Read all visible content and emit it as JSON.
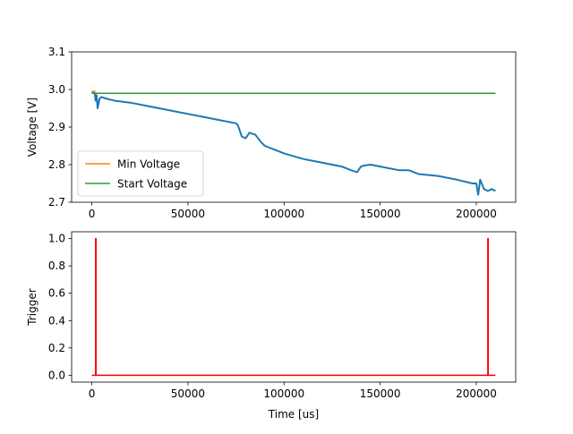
{
  "chart_data": [
    {
      "type": "line",
      "title": "",
      "xlabel": "",
      "ylabel": "Voltage [V]",
      "xlim": [
        -10500,
        220500
      ],
      "ylim": [
        2.7,
        3.1
      ],
      "xticks": [
        0,
        50000,
        100000,
        150000,
        200000
      ],
      "yticks": [
        2.7,
        2.8,
        2.9,
        3.0,
        3.1
      ],
      "xtick_labels": [
        "0",
        "50000",
        "100000",
        "150000",
        "200000"
      ],
      "ytick_labels": [
        "2.7",
        "2.8",
        "2.9",
        "3.0",
        "3.1"
      ],
      "legend": {
        "placement": "lower-left",
        "entries": [
          "Min Voltage",
          "Start Voltage"
        ]
      },
      "series": [
        {
          "name": "",
          "color": "#1f77b4",
          "x": [
            0,
            1500,
            2000,
            2500,
            3000,
            4000,
            5000,
            8000,
            12000,
            20000,
            30000,
            40000,
            50000,
            60000,
            65000,
            70000,
            75000,
            76000,
            78000,
            80000,
            82000,
            85000,
            88000,
            90000,
            95000,
            100000,
            110000,
            120000,
            130000,
            135000,
            138000,
            140000,
            142000,
            145000,
            150000,
            160000,
            165000,
            170000,
            180000,
            190000,
            198000,
            200000,
            201000,
            202000,
            204000,
            206000,
            208000,
            210000
          ],
          "y": [
            2.995,
            2.99,
            2.97,
            2.985,
            2.95,
            2.975,
            2.98,
            2.975,
            2.97,
            2.965,
            2.955,
            2.945,
            2.935,
            2.925,
            2.92,
            2.915,
            2.91,
            2.905,
            2.875,
            2.87,
            2.885,
            2.88,
            2.86,
            2.85,
            2.84,
            2.83,
            2.815,
            2.805,
            2.795,
            2.785,
            2.78,
            2.795,
            2.798,
            2.8,
            2.795,
            2.785,
            2.785,
            2.775,
            2.77,
            2.76,
            2.75,
            2.75,
            2.72,
            2.76,
            2.735,
            2.73,
            2.735,
            2.73
          ]
        },
        {
          "name": "Min Voltage",
          "color": "#ff7f0e",
          "x": [
            0,
            2000
          ],
          "y": [
            2.995,
            2.995
          ]
        },
        {
          "name": "Start Voltage",
          "color": "#2ca02c",
          "x": [
            0,
            210000
          ],
          "y": [
            2.99,
            2.99
          ]
        }
      ]
    },
    {
      "type": "line",
      "title": "",
      "xlabel": "Time [us]",
      "ylabel": "Trigger",
      "xlim": [
        -10500,
        220500
      ],
      "ylim": [
        -0.05,
        1.05
      ],
      "xticks": [
        0,
        50000,
        100000,
        150000,
        200000
      ],
      "yticks": [
        0.0,
        0.2,
        0.4,
        0.6,
        0.8,
        1.0
      ],
      "xtick_labels": [
        "0",
        "50000",
        "100000",
        "150000",
        "200000"
      ],
      "ytick_labels": [
        "0.0",
        "0.2",
        "0.4",
        "0.6",
        "0.8",
        "1.0"
      ],
      "series": [
        {
          "name": "",
          "color": "#ff0000",
          "x": [
            0,
            2000,
            2000,
            2200,
            2200,
            206000,
            206000,
            206200,
            206200,
            210000
          ],
          "y": [
            0,
            0,
            1,
            1,
            0,
            0,
            1,
            1,
            0,
            0
          ]
        }
      ]
    }
  ]
}
